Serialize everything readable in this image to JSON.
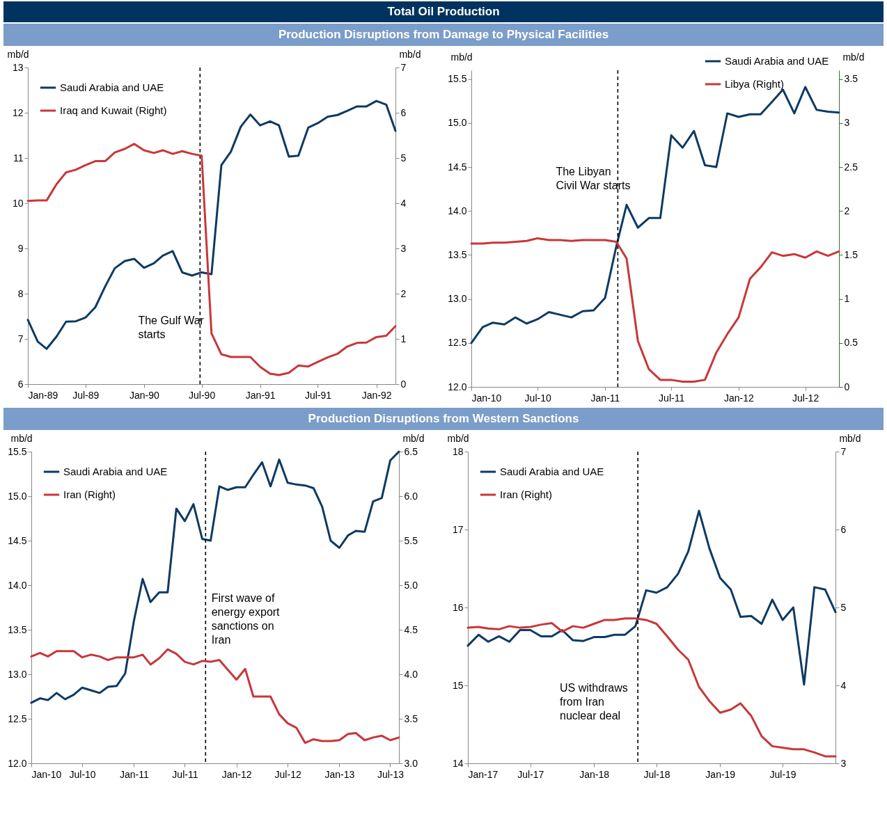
{
  "chart_data": [
    {
      "type": "line",
      "title": "Total Oil Production",
      "subtitle": "Production Disruptions from Damage to Physical Facilities",
      "ylabel": "mb/d",
      "y2label": "mb/d",
      "x": [
        "1989-01",
        "1989-02",
        "1989-03",
        "1989-04",
        "1989-05",
        "1989-06",
        "1989-07",
        "1989-08",
        "1989-09",
        "1989-10",
        "1989-11",
        "1989-12",
        "1990-01",
        "1990-02",
        "1990-03",
        "1990-04",
        "1990-05",
        "1990-06",
        "1990-07",
        "1990-08",
        "1990-09",
        "1990-10",
        "1990-11",
        "1990-12",
        "1991-01",
        "1991-02",
        "1991-03",
        "1991-04",
        "1991-05",
        "1991-06",
        "1991-07",
        "1991-08",
        "1991-09",
        "1991-10",
        "1991-11",
        "1991-12",
        "1992-01",
        "1992-02",
        "1992-03"
      ],
      "series": [
        {
          "name": "Saudi Arabia and UAE",
          "color": "#0d3a63",
          "values": [
            7.42,
            6.94,
            6.78,
            7.05,
            7.38,
            7.39,
            7.47,
            7.7,
            8.16,
            8.56,
            8.72,
            8.77,
            8.57,
            8.67,
            8.84,
            8.94,
            8.47,
            8.4,
            8.47,
            8.43,
            10.84,
            11.14,
            11.69,
            11.96,
            11.72,
            11.81,
            11.72,
            11.03,
            11.05,
            11.67,
            11.77,
            11.91,
            11.95,
            12.04,
            12.14,
            12.14,
            12.26,
            12.18,
            11.6
          ]
        },
        {
          "name": "Iraq and Kuwait (Right)",
          "color": "#c8373a",
          "axis": "y2",
          "values": [
            4.05,
            4.06,
            4.06,
            4.42,
            4.68,
            4.74,
            4.84,
            4.93,
            4.93,
            5.12,
            5.2,
            5.31,
            5.17,
            5.11,
            5.17,
            5.09,
            5.15,
            5.09,
            5.05,
            1.12,
            0.66,
            0.6,
            0.6,
            0.6,
            0.38,
            0.23,
            0.2,
            0.25,
            0.41,
            0.39,
            0.49,
            0.59,
            0.67,
            0.83,
            0.91,
            0.92,
            1.04,
            1.07,
            1.28
          ]
        }
      ],
      "xlim": [
        "1989-01",
        "1992-03"
      ],
      "xticks": [
        {
          "value": "1989-01",
          "label": "Jan-89"
        },
        {
          "value": "1989-07",
          "label": "Jul-89"
        },
        {
          "value": "1990-01",
          "label": "Jan-90"
        },
        {
          "value": "1990-07",
          "label": "Jul-90"
        },
        {
          "value": "1991-01",
          "label": "Jan-91"
        },
        {
          "value": "1991-07",
          "label": "Jul-91"
        },
        {
          "value": "1992-01",
          "label": "Jan-92"
        }
      ],
      "ylim": [
        6,
        13
      ],
      "yticks": [
        6,
        7,
        8,
        9,
        10,
        11,
        12,
        13
      ],
      "y2lim": [
        0,
        7
      ],
      "y2ticks": [
        0,
        1,
        2,
        3,
        4,
        5,
        6,
        7
      ],
      "ref_lines": [
        {
          "axis": "x",
          "value": "1990-06-26",
          "color": "#000000",
          "line_style": "dashed"
        }
      ],
      "annotations": [
        "The Gulf War\nstarts"
      ],
      "legend": "top left"
    },
    {
      "type": "line",
      "ylabel": "mb/d",
      "y2label": "mb/d",
      "x": [
        "2010-01",
        "2010-02",
        "2010-03",
        "2010-04",
        "2010-05",
        "2010-06",
        "2010-07",
        "2010-08",
        "2010-09",
        "2010-10",
        "2010-11",
        "2010-12",
        "2011-01",
        "2011-02",
        "2011-03",
        "2011-04",
        "2011-05",
        "2011-06",
        "2011-07",
        "2011-08",
        "2011-09",
        "2011-10",
        "2011-11",
        "2011-12",
        "2012-01",
        "2012-02",
        "2012-03",
        "2012-04",
        "2012-05",
        "2012-06",
        "2012-07",
        "2012-08",
        "2012-09",
        "2012-10"
      ],
      "series": [
        {
          "name": "Saudi Arabia and UAE",
          "color": "#0d3a63",
          "values": [
            12.5,
            12.68,
            12.73,
            12.71,
            12.79,
            12.72,
            12.77,
            12.85,
            12.82,
            12.79,
            12.86,
            12.87,
            13.01,
            13.6,
            14.07,
            13.81,
            13.92,
            13.92,
            14.86,
            14.72,
            14.91,
            14.52,
            14.5,
            15.11,
            15.07,
            15.1,
            15.1,
            15.24,
            15.38,
            15.11,
            15.41,
            15.15,
            15.13,
            15.12
          ]
        },
        {
          "name": "Libya (Right)",
          "color": "#c8373a",
          "axis": "y2",
          "values": [
            1.63,
            1.63,
            1.64,
            1.64,
            1.65,
            1.66,
            1.69,
            1.67,
            1.67,
            1.66,
            1.67,
            1.67,
            1.67,
            1.65,
            1.46,
            0.52,
            0.2,
            0.08,
            0.08,
            0.06,
            0.06,
            0.08,
            0.39,
            0.6,
            0.79,
            1.23,
            1.36,
            1.53,
            1.49,
            1.51,
            1.47,
            1.54,
            1.49,
            1.54
          ]
        }
      ],
      "xlim": [
        "2010-01",
        "2012-10"
      ],
      "xticks": [
        {
          "value": "2010-01",
          "label": "Jan-10"
        },
        {
          "value": "2010-07",
          "label": "Jul-10"
        },
        {
          "value": "2011-01",
          "label": "Jan-11"
        },
        {
          "value": "2011-07",
          "label": "Jul-11"
        },
        {
          "value": "2012-01",
          "label": "Jan-12"
        },
        {
          "value": "2012-07",
          "label": "Jul-12"
        }
      ],
      "ylim": [
        12,
        15.6
      ],
      "yticks": [
        {
          "value": 12,
          "label": "12.0"
        },
        {
          "value": 12.5,
          "label": "12.5"
        },
        {
          "value": 13,
          "label": "13.0"
        },
        {
          "value": 13.5,
          "label": "13.5"
        },
        {
          "value": 14,
          "label": "14.0"
        },
        {
          "value": 14.5,
          "label": "14.5"
        },
        {
          "value": 15,
          "label": "15.0"
        },
        {
          "value": 15.5,
          "label": "15.5"
        }
      ],
      "y2lim": [
        0,
        3.6
      ],
      "y2ticks": [
        0,
        0.5,
        1,
        1.5,
        2,
        2.5,
        3,
        3.5
      ],
      "ref_lines": [
        {
          "axis": "x",
          "value": "2011-02-05",
          "color": "#000000",
          "line_style": "dashed"
        }
      ],
      "annotations": [
        "The Libyan\nCivil War starts"
      ],
      "legend": "top right"
    },
    {
      "type": "line",
      "subtitle": "Production Disruptions from Western Sanctions",
      "ylabel": "mb/d",
      "y2label": "mb/d",
      "x": [
        "2010-01",
        "2010-02",
        "2010-03",
        "2010-04",
        "2010-05",
        "2010-06",
        "2010-07",
        "2010-08",
        "2010-09",
        "2010-10",
        "2010-11",
        "2010-12",
        "2011-01",
        "2011-02",
        "2011-03",
        "2011-04",
        "2011-05",
        "2011-06",
        "2011-07",
        "2011-08",
        "2011-09",
        "2011-10",
        "2011-11",
        "2011-12",
        "2012-01",
        "2012-02",
        "2012-03",
        "2012-04",
        "2012-05",
        "2012-06",
        "2012-07",
        "2012-08",
        "2012-09",
        "2012-10",
        "2012-11",
        "2012-12",
        "2013-01",
        "2013-02",
        "2013-03",
        "2013-04",
        "2013-05",
        "2013-06",
        "2013-07",
        "2013-08"
      ],
      "series": [
        {
          "name": "Saudi Arabia and UAE",
          "color": "#0d3a63",
          "values": [
            12.68,
            12.73,
            12.71,
            12.79,
            12.72,
            12.77,
            12.85,
            12.82,
            12.79,
            12.86,
            12.87,
            13.01,
            13.6,
            14.07,
            13.81,
            13.92,
            13.92,
            14.86,
            14.72,
            14.91,
            14.52,
            14.5,
            15.11,
            15.07,
            15.1,
            15.1,
            15.24,
            15.38,
            15.11,
            15.41,
            15.15,
            15.13,
            15.12,
            15.09,
            14.88,
            14.5,
            14.42,
            14.56,
            14.61,
            14.6,
            14.94,
            14.98,
            15.4,
            15.5
          ]
        },
        {
          "name": "Iran (Right)",
          "color": "#c8373a",
          "axis": "y2",
          "values": [
            4.2,
            4.24,
            4.2,
            4.26,
            4.26,
            4.26,
            4.19,
            4.22,
            4.2,
            4.16,
            4.19,
            4.19,
            4.19,
            4.22,
            4.11,
            4.18,
            4.28,
            4.23,
            4.14,
            4.11,
            4.15,
            4.14,
            4.16,
            4.05,
            3.94,
            4.06,
            3.75,
            3.75,
            3.75,
            3.55,
            3.45,
            3.4,
            3.23,
            3.27,
            3.25,
            3.25,
            3.26,
            3.33,
            3.34,
            3.26,
            3.29,
            3.31,
            3.26,
            3.29
          ]
        }
      ],
      "xlim": [
        "2010-01",
        "2013-08"
      ],
      "xticks": [
        {
          "value": "2010-01",
          "label": "Jan-10"
        },
        {
          "value": "2010-07",
          "label": "Jul-10"
        },
        {
          "value": "2011-01",
          "label": "Jan-11"
        },
        {
          "value": "2011-07",
          "label": "Jul-11"
        },
        {
          "value": "2012-01",
          "label": "Jan-12"
        },
        {
          "value": "2012-07",
          "label": "Jul-12"
        },
        {
          "value": "2013-01",
          "label": "Jan-13"
        },
        {
          "value": "2013-07",
          "label": "Jul-13"
        }
      ],
      "ylim": [
        12,
        15.5
      ],
      "yticks": [
        {
          "value": 12,
          "label": "12.0"
        },
        {
          "value": 12.5,
          "label": "12.5"
        },
        {
          "value": 13,
          "label": "13.0"
        },
        {
          "value": 13.5,
          "label": "13.5"
        },
        {
          "value": 14,
          "label": "14.0"
        },
        {
          "value": 14.5,
          "label": "14.5"
        },
        {
          "value": 15,
          "label": "15.0"
        },
        {
          "value": 15.5,
          "label": "15.5"
        }
      ],
      "y2lim": [
        3,
        6.5
      ],
      "y2ticks": [
        {
          "value": 3,
          "label": "3.0"
        },
        {
          "value": 3.5,
          "label": "3.5"
        },
        {
          "value": 4,
          "label": "4.0"
        },
        {
          "value": 4.5,
          "label": "4.5"
        },
        {
          "value": 5,
          "label": "5.0"
        },
        {
          "value": 5.5,
          "label": "5.5"
        },
        {
          "value": 6,
          "label": "6.0"
        },
        {
          "value": 6.5,
          "label": "6.5"
        }
      ],
      "ref_lines": [
        {
          "axis": "x",
          "value": "2011-09-13",
          "color": "#000000",
          "line_style": "dashed"
        }
      ],
      "annotations": [
        "First wave of\nenergy export\nsanctions on\nIran"
      ],
      "legend": "top left"
    },
    {
      "type": "line",
      "ylabel": "mb/d",
      "y2label": "mb/d",
      "x": [
        "2017-01",
        "2017-02",
        "2017-03",
        "2017-04",
        "2017-05",
        "2017-06",
        "2017-07",
        "2017-08",
        "2017-09",
        "2017-10",
        "2017-11",
        "2017-12",
        "2018-01",
        "2018-02",
        "2018-03",
        "2018-04",
        "2018-05",
        "2018-06",
        "2018-07",
        "2018-08",
        "2018-09",
        "2018-10",
        "2018-11",
        "2018-12",
        "2019-01",
        "2019-02",
        "2019-03",
        "2019-04",
        "2019-05",
        "2019-06",
        "2019-07",
        "2019-08",
        "2019-09",
        "2019-10",
        "2019-11",
        "2019-12"
      ],
      "series": [
        {
          "name": "Saudi Arabia and UAE",
          "color": "#0d3a63",
          "values": [
            15.51,
            15.65,
            15.56,
            15.63,
            15.56,
            15.71,
            15.71,
            15.63,
            15.63,
            15.71,
            15.58,
            15.57,
            15.62,
            15.62,
            15.65,
            15.65,
            15.76,
            16.22,
            16.19,
            16.26,
            16.43,
            16.72,
            17.24,
            16.76,
            16.38,
            16.23,
            15.88,
            15.89,
            15.79,
            16.1,
            15.84,
            16.0,
            15.01,
            16.26,
            16.23,
            15.94
          ]
        },
        {
          "name": "Iran (Right)",
          "color": "#c8373a",
          "axis": "y2",
          "values": [
            4.74,
            4.75,
            4.73,
            4.72,
            4.76,
            4.74,
            4.75,
            4.78,
            4.8,
            4.69,
            4.76,
            4.74,
            4.79,
            4.84,
            4.84,
            4.86,
            4.86,
            4.84,
            4.79,
            4.63,
            4.46,
            4.33,
            3.98,
            3.8,
            3.65,
            3.69,
            3.77,
            3.61,
            3.35,
            3.22,
            3.2,
            3.18,
            3.18,
            3.14,
            3.09,
            3.09
          ]
        }
      ],
      "xlim": [
        "2017-01",
        "2019-12"
      ],
      "xticks": [
        {
          "value": "2017-01",
          "label": "Jan-17"
        },
        {
          "value": "2017-07",
          "label": "Jul-17"
        },
        {
          "value": "2018-01",
          "label": "Jan-18"
        },
        {
          "value": "2018-07",
          "label": "Jul-18"
        },
        {
          "value": "2019-01",
          "label": "Jan-19"
        },
        {
          "value": "2019-07",
          "label": "Jul-19"
        }
      ],
      "ylim": [
        14,
        18
      ],
      "yticks": [
        14,
        15,
        16,
        17,
        18
      ],
      "y2lim": [
        3,
        7
      ],
      "y2ticks": [
        3,
        4,
        5,
        6,
        7
      ],
      "ref_lines": [
        {
          "axis": "x",
          "value": "2018-05-08",
          "color": "#000000",
          "line_style": "dashed"
        }
      ],
      "annotations": [
        "US withdraws\nfrom Iran\nnuclear deal"
      ],
      "legend": "top left"
    }
  ]
}
